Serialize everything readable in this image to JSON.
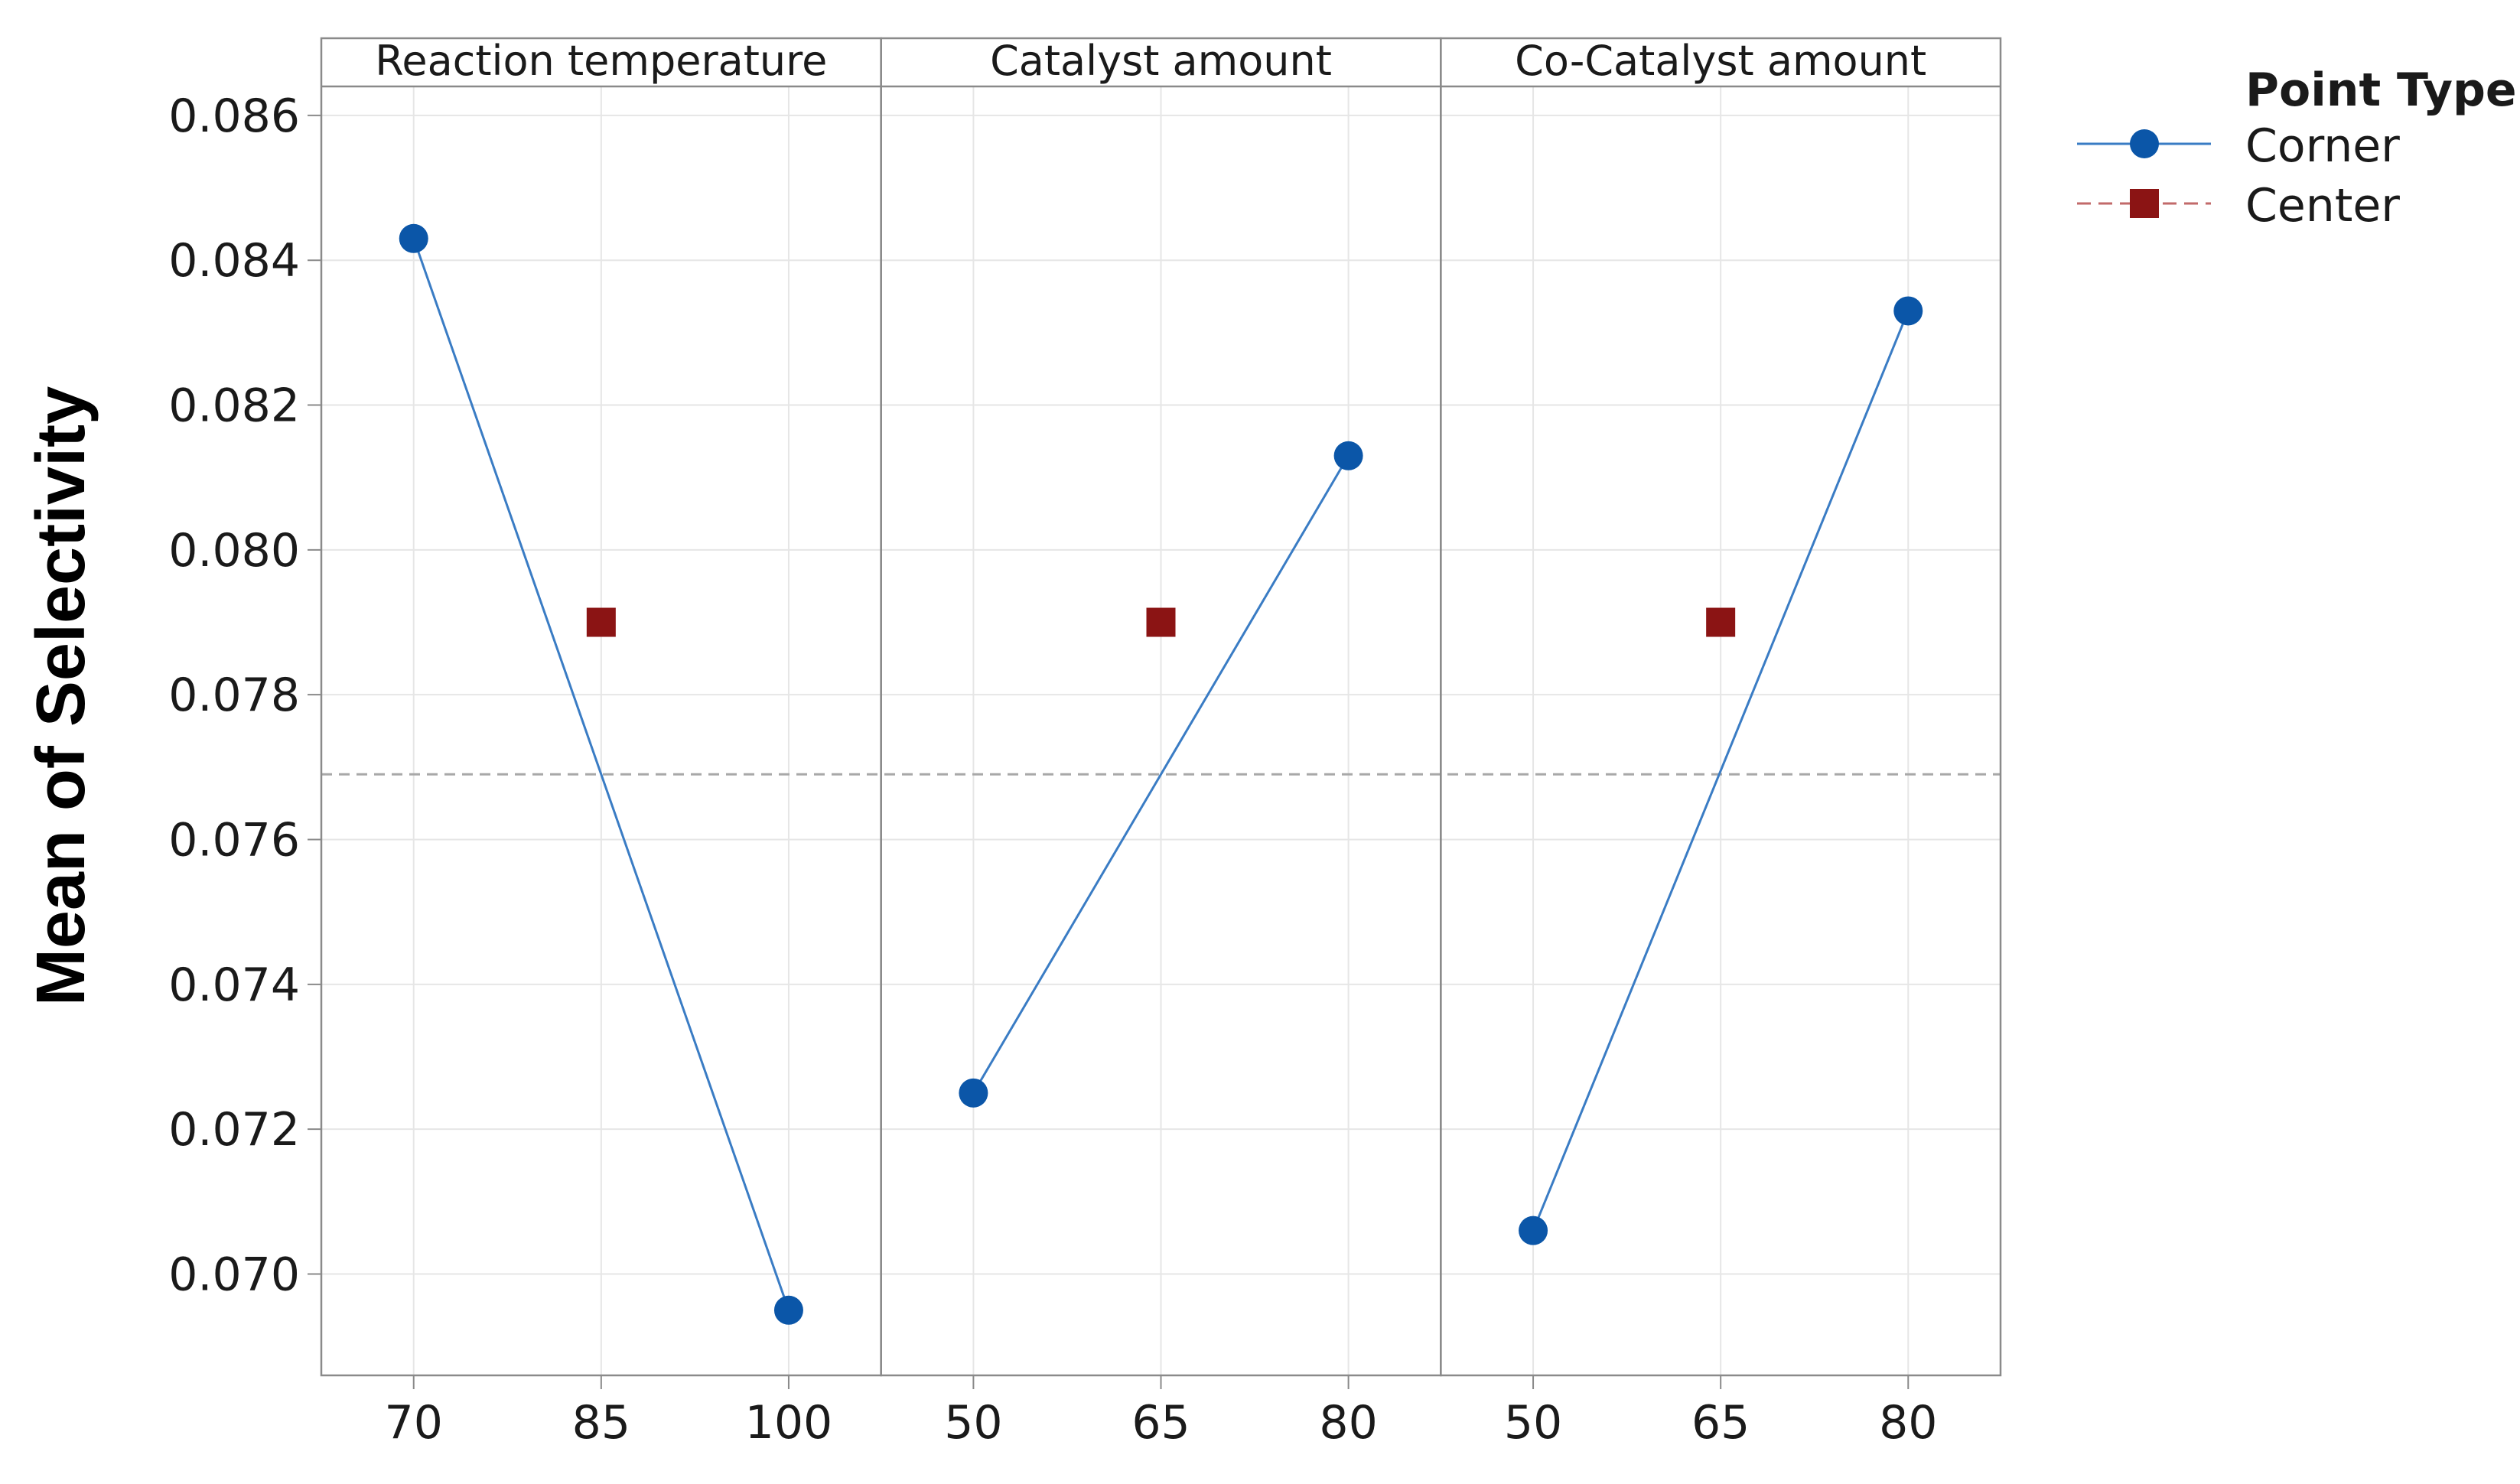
{
  "chart_data": {
    "type": "line",
    "title": "",
    "ylabel": "Mean of Selectivity",
    "ylim": [
      0.0686,
      0.0864
    ],
    "yticks": [
      0.07,
      0.072,
      0.074,
      0.076,
      0.078,
      0.08,
      0.082,
      0.084,
      0.086
    ],
    "ytick_labels": [
      "0.070",
      "0.072",
      "0.074",
      "0.076",
      "0.078",
      "0.080",
      "0.082",
      "0.084",
      "0.086"
    ],
    "reference_line": {
      "y": 0.0769,
      "style": "dashed"
    },
    "grid": true,
    "panels": [
      {
        "title": "Reaction temperature",
        "x_categories": [
          "70",
          "85",
          "100"
        ],
        "corner": {
          "x": [
            "70",
            "100"
          ],
          "y": [
            0.0843,
            0.0695
          ]
        },
        "center": {
          "x": [
            "85"
          ],
          "y": [
            0.079
          ]
        }
      },
      {
        "title": "Catalyst amount",
        "x_categories": [
          "50",
          "65",
          "80"
        ],
        "corner": {
          "x": [
            "50",
            "80"
          ],
          "y": [
            0.0725,
            0.0813
          ]
        },
        "center": {
          "x": [
            "65"
          ],
          "y": [
            0.079
          ]
        }
      },
      {
        "title": "Co-Catalyst amount",
        "x_categories": [
          "50",
          "65",
          "80"
        ],
        "corner": {
          "x": [
            "50",
            "80"
          ],
          "y": [
            0.0706,
            0.0833
          ]
        },
        "center": {
          "x": [
            "65"
          ],
          "y": [
            0.079
          ]
        }
      }
    ],
    "legend": {
      "title": "Point Type",
      "position": "top-right",
      "entries": [
        {
          "label": "Corner",
          "marker": "circle",
          "line": "solid"
        },
        {
          "label": "Center",
          "marker": "square",
          "line": "dashed"
        }
      ]
    },
    "colors": {
      "corner": "#0b56a8",
      "corner_line": "#3a7cc4",
      "center": "#8b1414",
      "center_line": "#c26a6a",
      "grid": "#e6e6e6",
      "frame": "#8a8a8a",
      "reference": "#a8a8a8"
    }
  }
}
